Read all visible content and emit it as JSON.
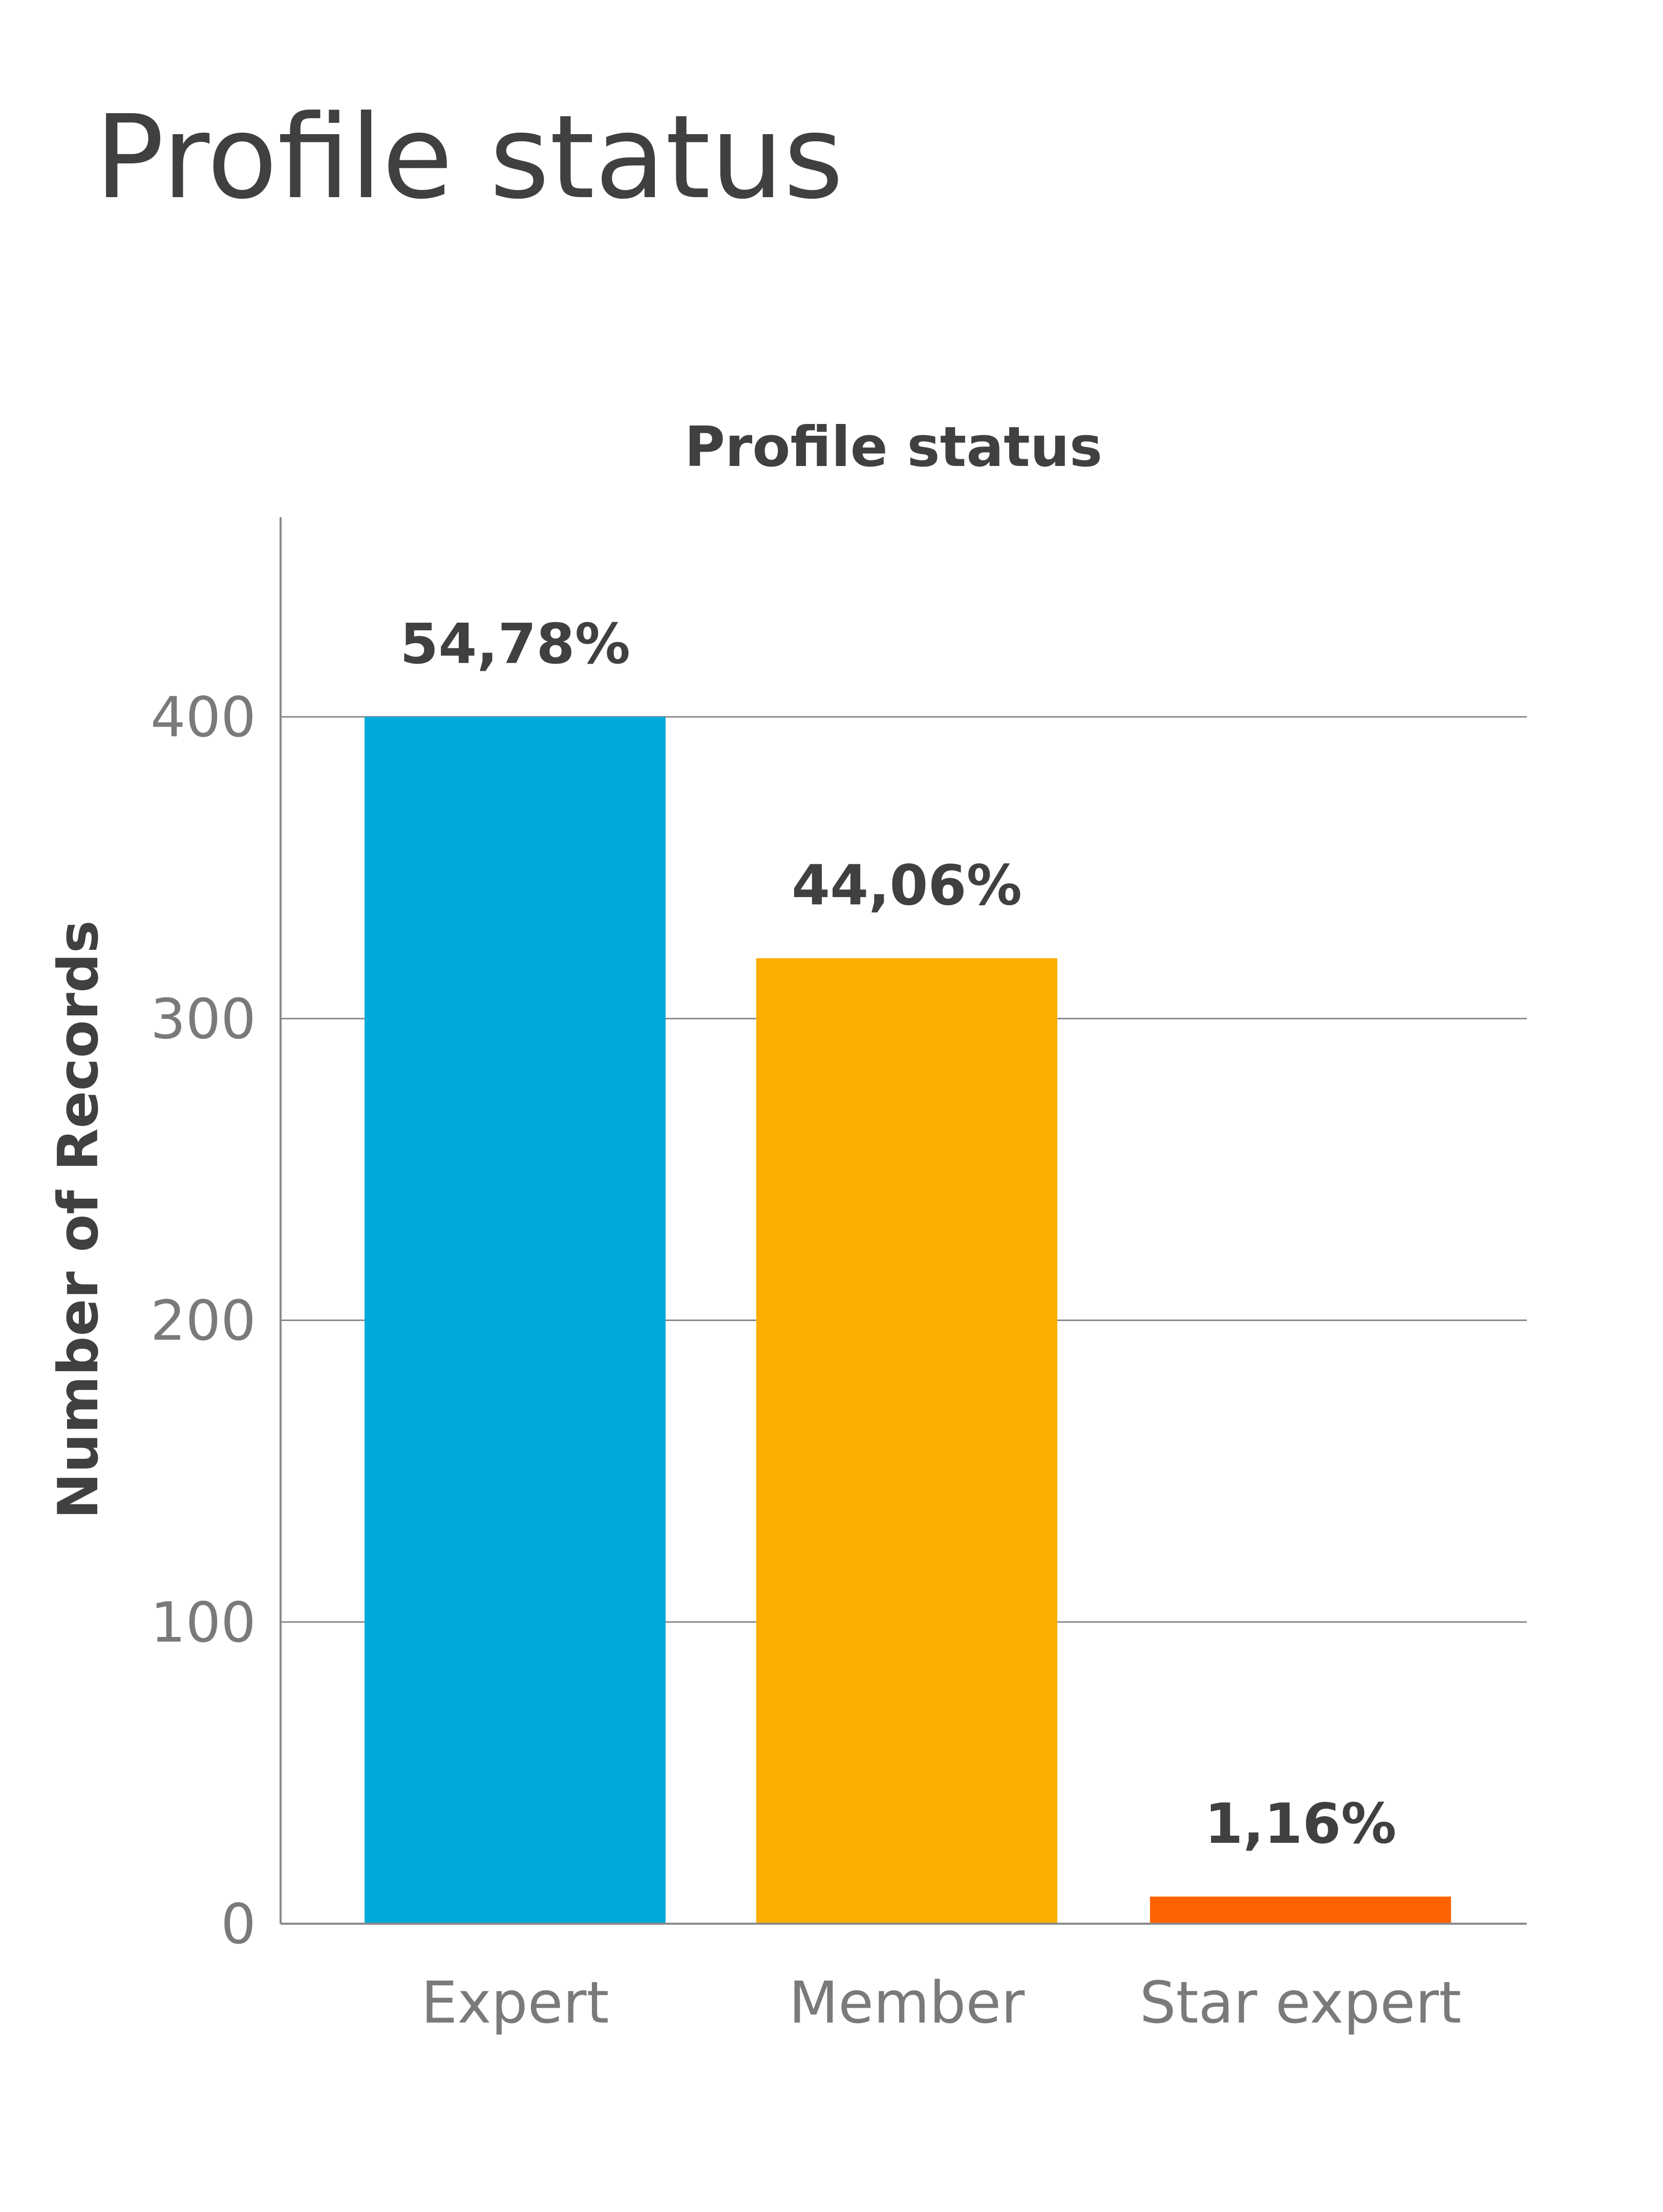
{
  "page_title": "Profile status",
  "chart_data": {
    "type": "bar",
    "title": "Profile status",
    "xlabel": "",
    "ylabel": "Number of Records",
    "categories": [
      "Expert",
      "Member",
      "Star expert"
    ],
    "values": [
      400,
      320,
      9
    ],
    "data_labels": [
      "54,78%",
      "44,06%",
      "1,16%"
    ],
    "colors": [
      "#00AADB",
      "#FBAD00",
      "#FF6200"
    ],
    "ylim": [
      0,
      467
    ],
    "yticks": [
      0,
      100,
      200,
      300,
      400
    ],
    "ytick_labels": [
      "0",
      "100",
      "200",
      "300",
      "400"
    ],
    "grid": true,
    "legend": "none"
  }
}
